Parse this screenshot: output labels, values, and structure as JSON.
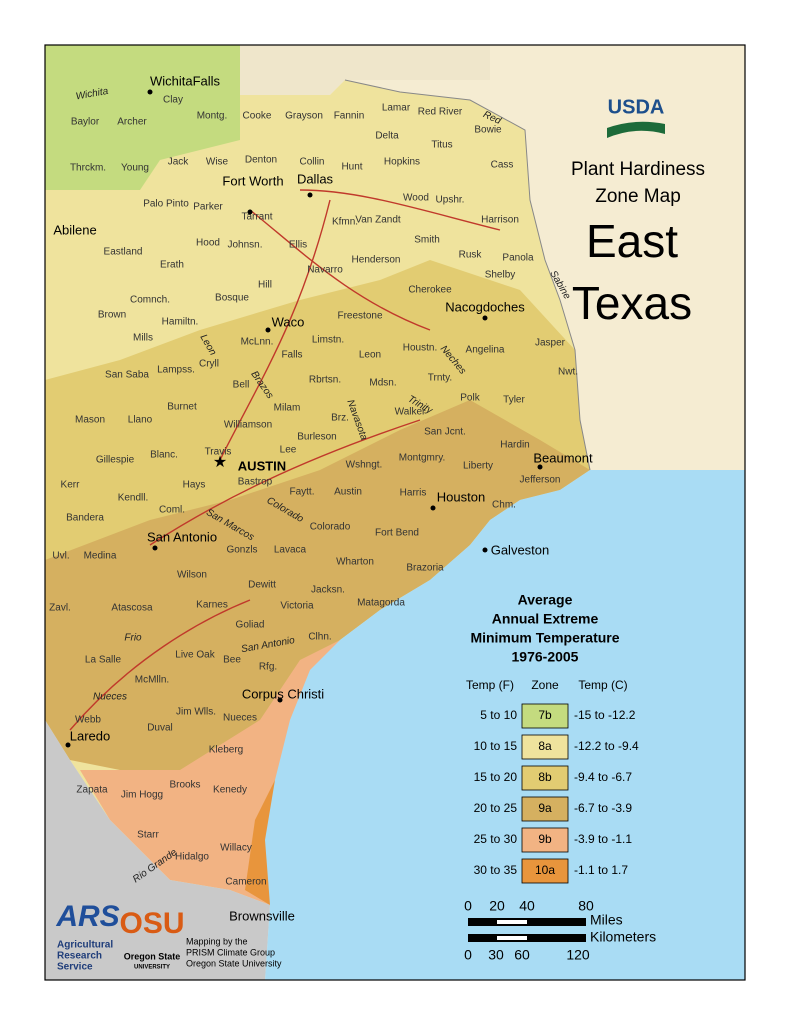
{
  "header": {
    "agency": "USDA",
    "title_lines": [
      "Plant Hardiness",
      "Zone Map"
    ],
    "region_lines": [
      "East",
      "Texas"
    ]
  },
  "legend": {
    "title_lines": [
      "Average",
      "Annual Extreme",
      "Minimum Temperature",
      "1976-2005"
    ],
    "columns": [
      "Temp (F)",
      "Zone",
      "Temp (C)"
    ],
    "rows": [
      {
        "f": "5 to 10",
        "zone": "7b",
        "c": "-15 to -12.2",
        "color": "#c4db7f"
      },
      {
        "f": "10 to 15",
        "zone": "8a",
        "c": "-12.2 to -9.4",
        "color": "#efe39d"
      },
      {
        "f": "15 to 20",
        "zone": "8b",
        "c": "-9.4 to -6.7",
        "color": "#e2cc72"
      },
      {
        "f": "20 to 25",
        "zone": "9a",
        "c": "-6.7 to -3.9",
        "color": "#d5b060"
      },
      {
        "f": "25 to 30",
        "zone": "9b",
        "c": "-3.9 to -1.1",
        "color": "#f2b383"
      },
      {
        "f": "30 to 35",
        "zone": "10a",
        "c": "-1.1 to 1.7",
        "color": "#e8953c"
      }
    ]
  },
  "scale": {
    "miles_ticks": [
      "0",
      "20",
      "40",
      "80"
    ],
    "miles_label": "Miles",
    "km_label": "Kilometers",
    "km_ticks": [
      "0",
      "30",
      "60",
      "120"
    ]
  },
  "cities": [
    "WichitaFalls",
    "Fort Worth",
    "Dallas",
    "Abilene",
    "Waco",
    "Nacogdoches",
    "AUSTIN",
    "Houston",
    "Beaumont",
    "San Antonio",
    "Galveston",
    "Corpus Christi",
    "Laredo",
    "Brownsville"
  ],
  "counties": [
    "Baylor",
    "Archer",
    "Clay",
    "Montg.",
    "Cooke",
    "Grayson",
    "Fannin",
    "Lamar",
    "Red River",
    "Bowie",
    "Delta",
    "Titus",
    "Jack",
    "Wise",
    "Denton",
    "Collin",
    "Hunt",
    "Hopkins",
    "Cass",
    "Young",
    "Thrckm.",
    "Palo Pinto",
    "Parker",
    "Tarrant",
    "Kfmn.",
    "Van Zandt",
    "Wood",
    "Upshr.",
    "Harrison",
    "Smith",
    "Rusk",
    "Shelby",
    "Panola",
    "Eastland",
    "Erath",
    "Hood",
    "Johnsn.",
    "Ellis",
    "Navarro",
    "Henderson",
    "Cherokee",
    "Comnch.",
    "Hamiltn.",
    "Bosque",
    "Hill",
    "Brown",
    "Mills",
    "Cryll",
    "McLnn.",
    "Limstn.",
    "Freestone",
    "Falls",
    "Leon",
    "Houstn.",
    "Angelina",
    "San Saba",
    "Lampss.",
    "Bell",
    "Milam",
    "Rbrtsn.",
    "Mdsn.",
    "Trnty.",
    "Polk",
    "Tyler",
    "Nwt.",
    "Jasper",
    "Mason",
    "Llano",
    "Burnet",
    "Williamson",
    "Burleson",
    "Brz.",
    "Walker",
    "San Jcnt.",
    "Hardin",
    "Gillespie",
    "Blanc.",
    "Travis",
    "Lee",
    "Wshngt.",
    "Montgmry.",
    "Liberty",
    "Kerr",
    "Hays",
    "Bastrop",
    "Faytt.",
    "Austin",
    "Harris",
    "Jefferson",
    "Kendll.",
    "Coml.",
    "Bandera",
    "Colorado",
    "Fort Bend",
    "Chm.",
    "Uvl.",
    "Medina",
    "Gonzls",
    "Lavaca",
    "Wharton",
    "Brazoria",
    "Wilson",
    "Dewitt",
    "Jacksn.",
    "Zavl.",
    "Atascosa",
    "Karnes",
    "Victoria",
    "Matagorda",
    "Goliad",
    "Clhn.",
    "La Salle",
    "Live Oak",
    "Bee",
    "Rfg.",
    "McMlln.",
    "Webb",
    "Duval",
    "Jim Wlls.",
    "Nueces",
    "Kleberg",
    "Zapata",
    "Jim Hogg",
    "Brooks",
    "Kenedy",
    "Starr",
    "Hidalgo",
    "Willacy",
    "Cameron"
  ],
  "rivers": [
    "Wichita",
    "Red",
    "Leon",
    "Brazos",
    "Navasota",
    "Neches",
    "Trinity",
    "Colorado",
    "San Marcos",
    "San Antonio",
    "Frio",
    "Nueces",
    "Rio Grande",
    "Sabine"
  ],
  "credits": {
    "ars_logo": "ARS",
    "ars_lines": [
      "Agricultural",
      "Research",
      "Service"
    ],
    "osu_logo": "OSU",
    "osu_lines": [
      "Oregon State",
      "UNIVERSITY"
    ],
    "mapping_lines": [
      "Mapping by the",
      "PRISM Climate Group",
      "Oregon State University"
    ]
  }
}
